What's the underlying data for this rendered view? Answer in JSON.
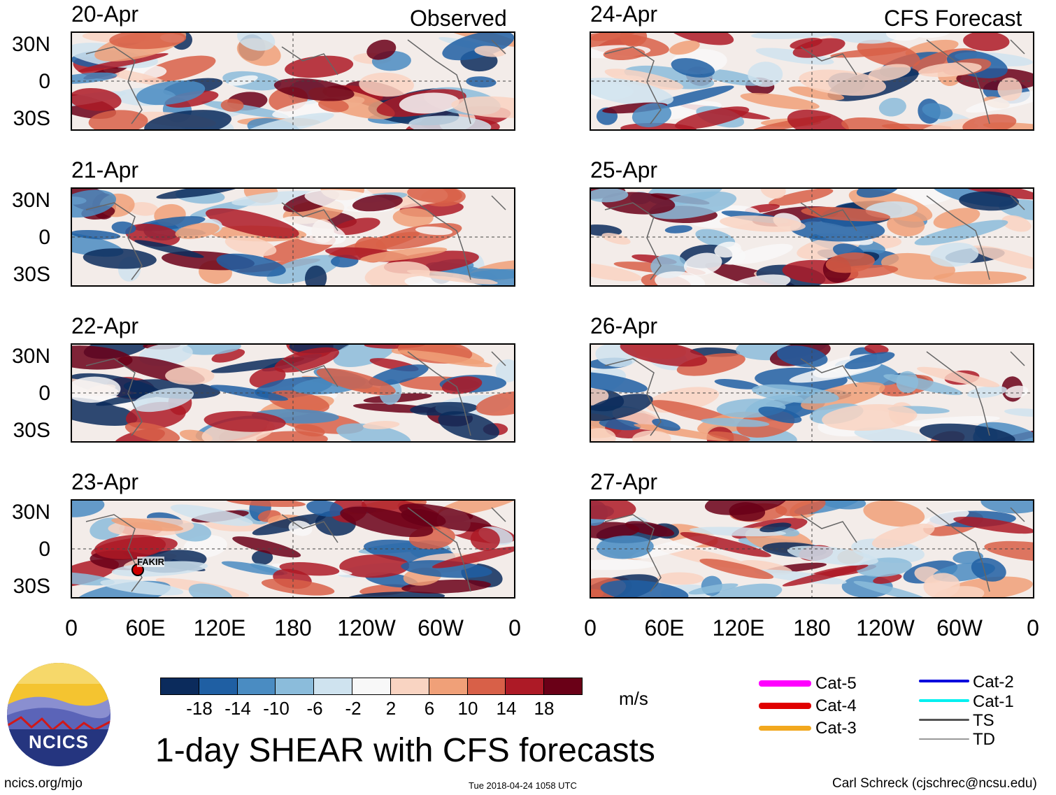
{
  "observed_label": "Observed",
  "forecast_label": "CFS Forecast",
  "panels_left": [
    {
      "date": "20-Apr"
    },
    {
      "date": "21-Apr"
    },
    {
      "date": "22-Apr"
    },
    {
      "date": "23-Apr"
    }
  ],
  "panels_right": [
    {
      "date": "24-Apr"
    },
    {
      "date": "25-Apr"
    },
    {
      "date": "26-Apr"
    },
    {
      "date": "27-Apr"
    }
  ],
  "lat_labels": [
    "30N",
    "0",
    "30S"
  ],
  "lon_labels": [
    "0",
    "60E",
    "120E",
    "180",
    "120W",
    "60W",
    "0"
  ],
  "storm_label": "FAKIR",
  "colorbar": {
    "colors": [
      "#0b2b5c",
      "#1f5fa3",
      "#4a8cc2",
      "#8bbcdb",
      "#cfe3ef",
      "#f8f8f8",
      "#f9d4c2",
      "#f0a078",
      "#d86048",
      "#ad1a26",
      "#6a0017"
    ],
    "ticks": [
      "-18",
      "-14",
      "-10",
      "-6",
      "-2",
      "2",
      "6",
      "10",
      "14",
      "18"
    ],
    "units": "m/s"
  },
  "title": "1-day SHEAR with CFS forecasts",
  "legend": {
    "left": [
      {
        "label": "Cat-5",
        "color": "#ff00ff"
      },
      {
        "label": "Cat-4",
        "color": "#e00000"
      },
      {
        "label": "Cat-3",
        "color": "#f2a81e"
      }
    ],
    "right": [
      {
        "label": "Cat-2",
        "color": "#0000dd"
      },
      {
        "label": "Cat-1",
        "color": "#00f0f0"
      },
      {
        "label": "TS",
        "color": "#555555"
      },
      {
        "label": "TD",
        "color": "#999999"
      }
    ]
  },
  "logo_text": "NCICS",
  "footer": {
    "url": "ncics.org/mjo",
    "timestamp": "Tue 2018-04-24 1058 UTC",
    "author": "Carl Schreck (cjschrec@ncsu.edu)"
  }
}
